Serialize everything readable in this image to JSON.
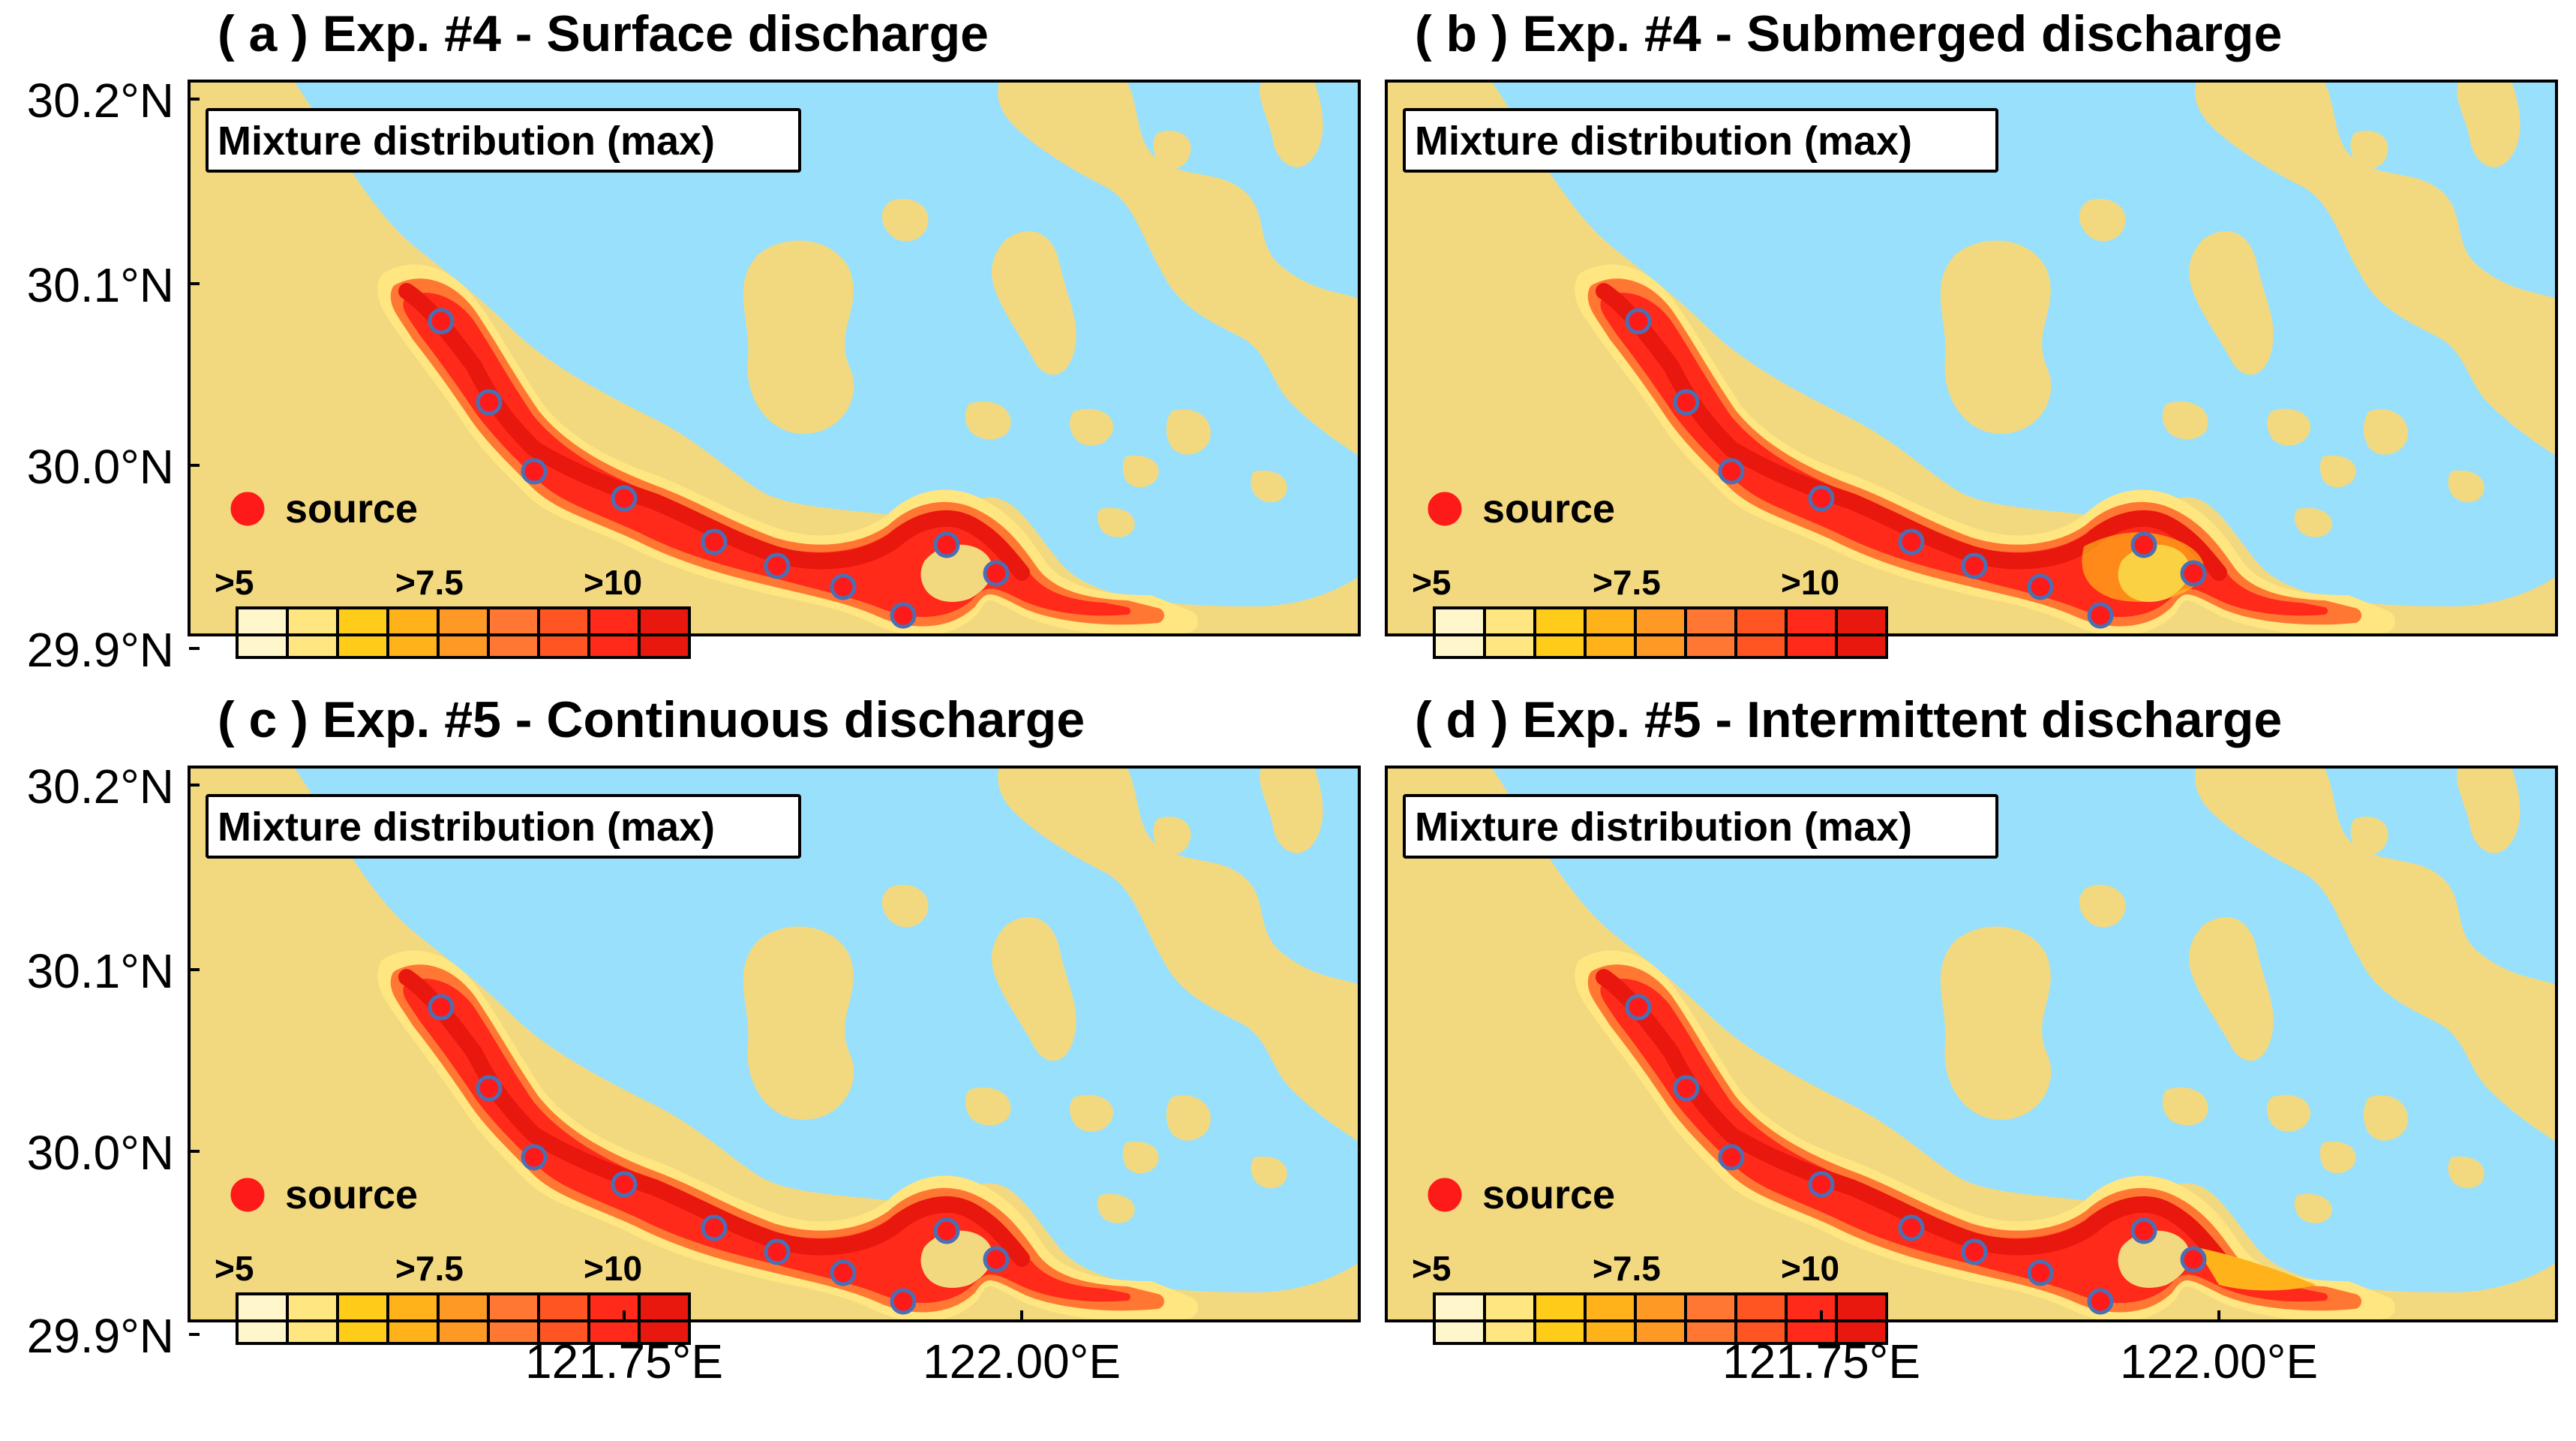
{
  "figure": {
    "colors": {
      "land": "#f2d980",
      "water": "#99e0fc",
      "marker_fill": "#ff1a1a",
      "marker_edge": "#4a6fb5",
      "scale": [
        "#fff6cc",
        "#ffe680",
        "#ffcc1a",
        "#ffb21a",
        "#ff9926",
        "#ff7733",
        "#ff5522",
        "#ff2a1a",
        "#e8180f"
      ]
    },
    "panels": [
      {
        "title": "( a )  Exp. #4 - Surface discharge",
        "box_label": "Mixture distribution (max)",
        "legend_label": "source",
        "colorbar_labels": [
          ">5",
          ">7.5",
          ">10"
        ],
        "plume": "surface",
        "map_icon": "map-icon"
      },
      {
        "title": "( b )  Exp. #4 - Submerged discharge",
        "box_label": "Mixture distribution (max)",
        "legend_label": "source",
        "colorbar_labels": [
          ">5",
          ">7.5",
          ">10"
        ],
        "plume": "submerged",
        "map_icon": "map-icon"
      },
      {
        "title": "( c )  Exp. #5 - Continuous discharge",
        "box_label": "Mixture distribution (max)",
        "legend_label": "source",
        "colorbar_labels": [
          ">5",
          ">7.5",
          ">10"
        ],
        "plume": "continuous",
        "map_icon": "map-icon"
      },
      {
        "title": "( d )  Exp. #5 - Intermittent discharge",
        "box_label": "Mixture distribution (max)",
        "legend_label": "source",
        "colorbar_labels": [
          ">5",
          ">7.5",
          ">10"
        ],
        "plume": "intermittent",
        "map_icon": "map-icon"
      }
    ],
    "y_ticks": [
      "30.2°N",
      "30.1°N",
      "30.0°N",
      "29.9°N"
    ],
    "x_ticks": [
      "121.75°E",
      "122.00°E"
    ]
  }
}
